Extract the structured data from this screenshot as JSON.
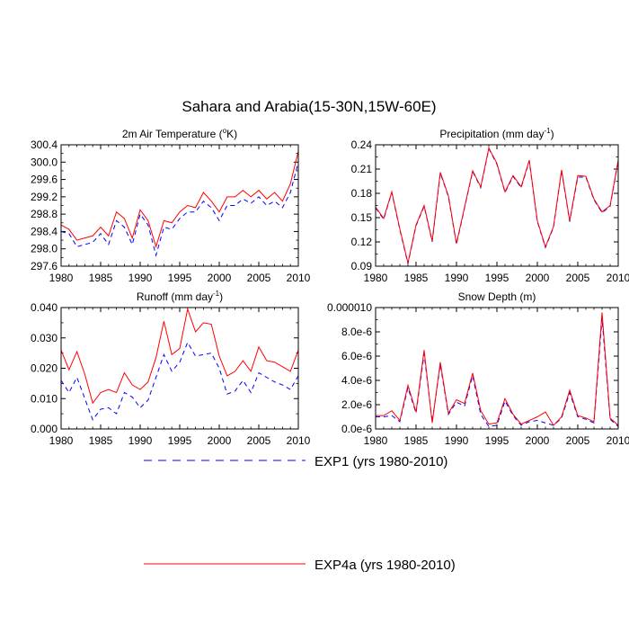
{
  "figure_title": "Sahara and Arabia(15-30N,15W-60E)",
  "colors": {
    "exp1": "#0000ff",
    "exp4a": "#ff0000",
    "axis": "#000000"
  },
  "legend": [
    {
      "label": "EXP1 (yrs 1980-2010)",
      "style": "dashed",
      "color": "#0000ff"
    },
    {
      "label": "EXP4a (yrs 1980-2010)",
      "style": "solid",
      "color": "#ff0000"
    }
  ],
  "chart_data": [
    {
      "type": "line",
      "title": "2m Air Temperature (°K)",
      "title_main": "2m Air Temperature (",
      "title_sup": "o",
      "title_tail": "K)",
      "ylim": [
        297.6,
        300.4
      ],
      "yticks": [
        297.6,
        298.0,
        298.4,
        298.8,
        299.2,
        299.6,
        300.0,
        300.4
      ],
      "ytick_labels": [
        "297.6",
        "298.0",
        "298.4",
        "298.8",
        "299.2",
        "299.6",
        "300.0",
        "300.4"
      ],
      "xlim": [
        1980,
        2010
      ],
      "xticks": [
        1980,
        1985,
        1990,
        1995,
        2000,
        2005,
        2010
      ],
      "xtick_labels": [
        "1980",
        "1985",
        "1990",
        "1995",
        "2000",
        "2005",
        "2010"
      ],
      "series": [
        {
          "name": "EXP1",
          "values": [
            298.4,
            298.35,
            298.05,
            298.1,
            298.15,
            298.35,
            298.1,
            298.65,
            298.5,
            298.1,
            298.8,
            298.55,
            297.85,
            298.5,
            298.45,
            298.7,
            298.85,
            298.85,
            299.1,
            298.95,
            298.65,
            299.0,
            299.0,
            299.15,
            299.05,
            299.2,
            299.0,
            299.1,
            298.95,
            299.3,
            300.0
          ]
        },
        {
          "name": "EXP4a",
          "values": [
            298.55,
            298.45,
            298.2,
            298.25,
            298.3,
            298.5,
            298.3,
            298.85,
            298.7,
            298.25,
            298.9,
            298.65,
            298.05,
            298.65,
            298.6,
            298.85,
            299.0,
            298.95,
            299.3,
            299.1,
            298.85,
            299.2,
            299.2,
            299.35,
            299.2,
            299.35,
            299.15,
            299.3,
            299.1,
            299.5,
            300.25
          ]
        }
      ]
    },
    {
      "type": "line",
      "title": "Precipitation (mm day-1)",
      "title_main": "Precipitation (mm day",
      "title_sup": "-1",
      "title_tail": ")",
      "ylim": [
        0.09,
        0.24
      ],
      "yticks": [
        0.09,
        0.12,
        0.15,
        0.18,
        0.21,
        0.24
      ],
      "ytick_labels": [
        "0.09",
        "0.12",
        "0.15",
        "0.18",
        "0.21",
        "0.24"
      ],
      "xlim": [
        1980,
        2010
      ],
      "xticks": [
        1980,
        1985,
        1990,
        1995,
        2000,
        2005,
        2010
      ],
      "xtick_labels": [
        "1980",
        "1985",
        "1990",
        "1995",
        "2000",
        "2005",
        "2010"
      ],
      "series": [
        {
          "name": "EXP1",
          "values": [
            0.162,
            0.148,
            0.181,
            0.135,
            0.093,
            0.14,
            0.164,
            0.12,
            0.205,
            0.176,
            0.117,
            0.162,
            0.207,
            0.187,
            0.235,
            0.216,
            0.181,
            0.201,
            0.187,
            0.22,
            0.145,
            0.113,
            0.138,
            0.208,
            0.145,
            0.2,
            0.2,
            0.172,
            0.156,
            0.164,
            0.22
          ]
        },
        {
          "name": "EXP4a",
          "values": [
            0.163,
            0.149,
            0.182,
            0.136,
            0.094,
            0.141,
            0.165,
            0.121,
            0.206,
            0.177,
            0.118,
            0.163,
            0.208,
            0.188,
            0.236,
            0.217,
            0.182,
            0.202,
            0.188,
            0.221,
            0.146,
            0.114,
            0.139,
            0.209,
            0.146,
            0.202,
            0.201,
            0.173,
            0.157,
            0.165,
            0.221
          ]
        }
      ]
    },
    {
      "type": "line",
      "title": "Runoff (mm day-1)",
      "title_main": "Runoff (mm day",
      "title_sup": "-1",
      "title_tail": ")",
      "ylim": [
        0.0,
        0.04
      ],
      "yticks": [
        0.0,
        0.01,
        0.02,
        0.03,
        0.04
      ],
      "ytick_labels": [
        "0.000",
        "0.010",
        "0.020",
        "0.030",
        "0.040"
      ],
      "xlim": [
        1980,
        2010
      ],
      "xticks": [
        1980,
        1985,
        1990,
        1995,
        2000,
        2005,
        2010
      ],
      "xtick_labels": [
        "1980",
        "1985",
        "1990",
        "1995",
        "2000",
        "2005",
        "2010"
      ],
      "series": [
        {
          "name": "EXP1",
          "values": [
            0.016,
            0.012,
            0.017,
            0.01,
            0.003,
            0.0065,
            0.007,
            0.005,
            0.012,
            0.0105,
            0.007,
            0.0095,
            0.017,
            0.0245,
            0.019,
            0.022,
            0.0285,
            0.024,
            0.0245,
            0.025,
            0.02,
            0.0115,
            0.0125,
            0.016,
            0.012,
            0.0185,
            0.017,
            0.0155,
            0.0145,
            0.013,
            0.0175
          ]
        },
        {
          "name": "EXP4a",
          "values": [
            0.026,
            0.0195,
            0.0255,
            0.018,
            0.0085,
            0.012,
            0.013,
            0.012,
            0.0185,
            0.0145,
            0.013,
            0.0155,
            0.0235,
            0.0355,
            0.0245,
            0.0265,
            0.0395,
            0.032,
            0.035,
            0.0345,
            0.024,
            0.0175,
            0.019,
            0.0225,
            0.019,
            0.027,
            0.0225,
            0.022,
            0.0205,
            0.019,
            0.026
          ]
        }
      ]
    },
    {
      "type": "line",
      "title": "Snow Depth (m)",
      "title_main": "Snow Depth (m)",
      "title_sup": "",
      "title_tail": "",
      "ylim": [
        0.0,
        1e-05
      ],
      "yticks": [
        0.0,
        2e-06,
        4e-06,
        6e-06,
        8e-06,
        1e-05
      ],
      "ytick_labels": [
        "0.0e-6",
        "2.0e-6",
        "4.0e-6",
        "6.0e-6",
        "8.0e-6",
        "0.000010"
      ],
      "xlim": [
        1980,
        2010
      ],
      "xticks": [
        1980,
        1985,
        1990,
        1995,
        2000,
        2005,
        2010
      ],
      "xtick_labels": [
        "1980",
        "1985",
        "1990",
        "1995",
        "2000",
        "2005",
        "2010"
      ],
      "series": [
        {
          "name": "EXP1",
          "values": [
            1e-06,
            1e-06,
            1.1e-06,
            6e-07,
            3.4e-06,
            1.3e-06,
            6.2e-06,
            6e-07,
            5.3e-06,
            1.2e-06,
            2.2e-06,
            1.9e-06,
            4.4e-06,
            1.2e-06,
            2e-07,
            3e-07,
            2.3e-06,
            1.1e-06,
            3e-07,
            6e-07,
            7e-07,
            5e-07,
            3e-07,
            9e-07,
            3e-06,
            1e-06,
            8e-07,
            5e-07,
            9.1e-06,
            8e-07,
            2e-07
          ]
        },
        {
          "name": "EXP4a",
          "values": [
            1.1e-06,
            1.1e-06,
            1.5e-06,
            7e-07,
            3.6e-06,
            1.4e-06,
            6.5e-06,
            5e-07,
            5.5e-06,
            1.3e-06,
            2.4e-06,
            2.1e-06,
            4.6e-06,
            1.5e-06,
            4e-07,
            5e-07,
            2.5e-06,
            1.2e-06,
            4e-07,
            7e-07,
            1e-06,
            1.4e-06,
            3e-07,
            1e-06,
            3.2e-06,
            1.1e-06,
            9e-07,
            6e-07,
            9.6e-06,
            9e-07,
            3e-07
          ]
        }
      ]
    }
  ]
}
